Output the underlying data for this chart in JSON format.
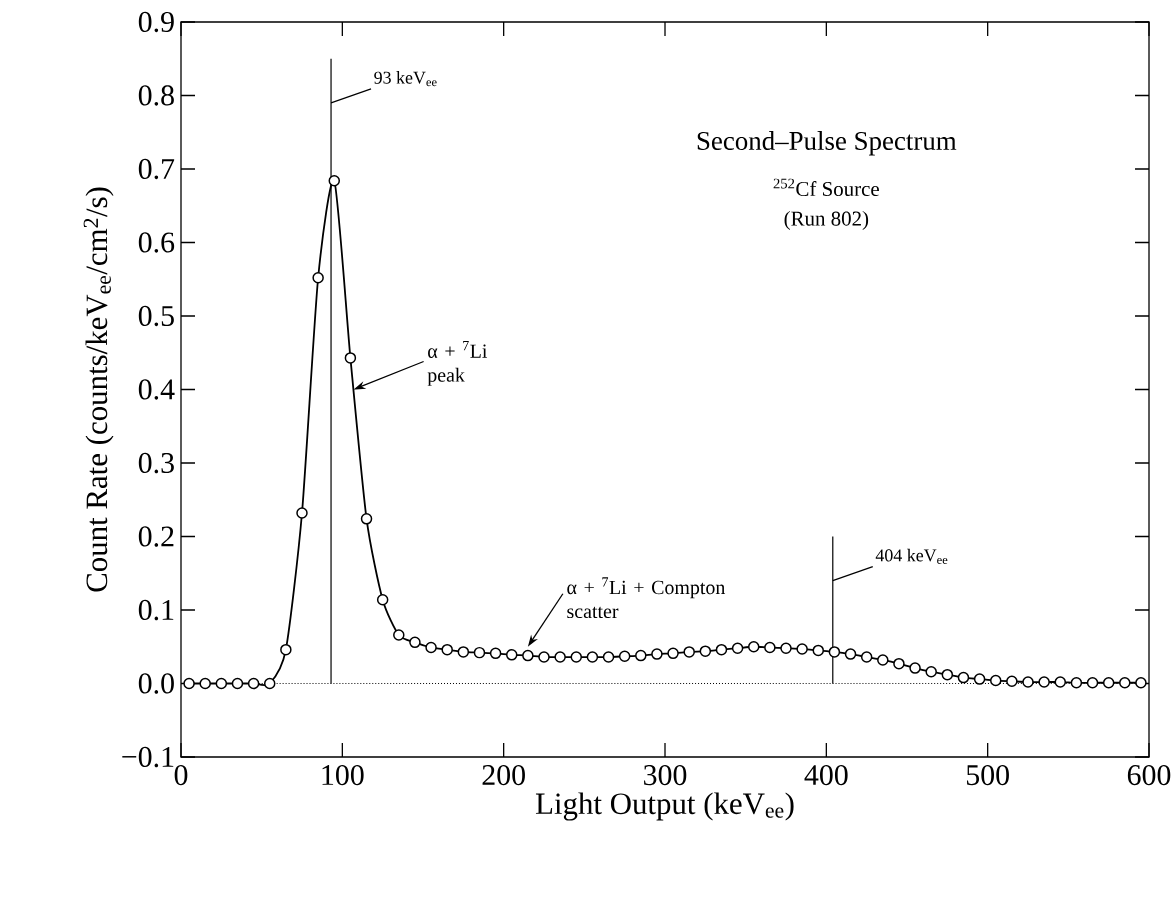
{
  "chart_data": {
    "type": "line",
    "xlabel": "Light Output (keV$_{ee}$)",
    "ylabel": "Count Rate (counts/keV$_{ee}$/cm$^{2}$/s)",
    "x": [
      5,
      15,
      25,
      35,
      45,
      55,
      65,
      75,
      85,
      95,
      105,
      115,
      125,
      135,
      145,
      155,
      165,
      175,
      185,
      195,
      205,
      215,
      225,
      235,
      245,
      255,
      265,
      275,
      285,
      295,
      305,
      315,
      325,
      335,
      345,
      355,
      365,
      375,
      385,
      395,
      405,
      415,
      425,
      435,
      445,
      455,
      465,
      475,
      485,
      495,
      505,
      515,
      525,
      535,
      545,
      555,
      565,
      575,
      585,
      595
    ],
    "series": [
      {
        "color": "#000000",
        "values": [
          0,
          0,
          0,
          0,
          0,
          0,
          0.046,
          0.232,
          0.552,
          0.684,
          0.443,
          0.224,
          0.114,
          0.066,
          0.056,
          0.049,
          0.046,
          0.043,
          0.042,
          0.041,
          0.039,
          0.038,
          0.036,
          0.036,
          0.036,
          0.036,
          0.036,
          0.037,
          0.038,
          0.04,
          0.041,
          0.043,
          0.044,
          0.046,
          0.048,
          0.05,
          0.049,
          0.048,
          0.047,
          0.045,
          0.043,
          0.04,
          0.036,
          0.032,
          0.027,
          0.021,
          0.016,
          0.012,
          0.008,
          0.006,
          0.004,
          0.003,
          0.002,
          0.002,
          0.002,
          0.001,
          0.001,
          0.001,
          0.001,
          0.001
        ]
      }
    ],
    "xlim": [
      0,
      600
    ],
    "ylim": [
      -0.1,
      0.9
    ],
    "xticks": [
      0,
      100,
      200,
      300,
      400,
      500,
      600
    ],
    "yticks": [
      {
        "value": -0.1,
        "label": "−0.1"
      },
      {
        "value": 0,
        "label": "0.0"
      },
      {
        "value": 0.1,
        "label": "0.1"
      },
      {
        "value": 0.2,
        "label": "0.2"
      },
      {
        "value": 0.3,
        "label": "0.3"
      },
      {
        "value": 0.4,
        "label": "0.4"
      },
      {
        "value": 0.5,
        "label": "0.5"
      },
      {
        "value": 0.6,
        "label": "0.6"
      },
      {
        "value": 0.7,
        "label": "0.7"
      },
      {
        "value": 0.8,
        "label": "0.8"
      },
      {
        "value": 0.9,
        "label": "0.9"
      }
    ],
    "marker": "circle",
    "line_style": "solid",
    "ref_lines": [
      {
        "axis": "x",
        "value": 93,
        "label": "93 keV$_{ee}$"
      },
      {
        "axis": "x",
        "value": 404,
        "label": "404 keV$_{ee}$"
      },
      {
        "axis": "y",
        "value": 0,
        "line_style": "dotted"
      }
    ],
    "annotations": [
      "Second–Pulse Spectrum",
      "$^{252}$Cf Source",
      "(Run 802)",
      {
        "text": "α + $^{7}$Li peak",
        "x": 107,
        "y": 0.4
      },
      {
        "text": "α + $^{7}$Li + Compton scatter",
        "x": 215,
        "y": 0.05
      }
    ]
  }
}
